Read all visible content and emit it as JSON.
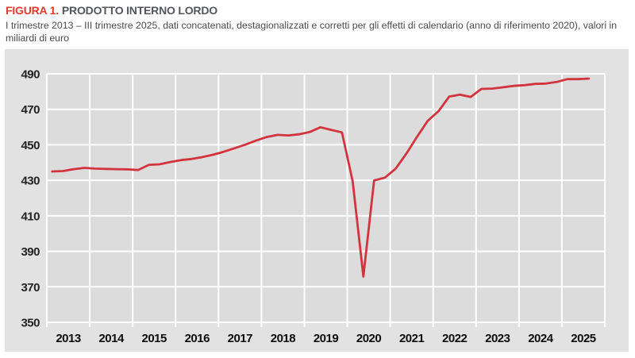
{
  "figure": {
    "label": "FIGURA 1.",
    "title": "PRODOTTO INTERNO LORDO",
    "subtitle": "I trimestre 2013 – III trimestre 2025, dati concatenati, destagionalizzati e corretti per gli effetti di calendario (anno di riferimento 2020), valori in miliardi di euro"
  },
  "chart_data": {
    "type": "line",
    "title": "Prodotto interno lordo",
    "x_description": "Quarters from Q1 2013 to Q3 2025",
    "x_tick_labels": [
      "2013",
      "2014",
      "2015",
      "2016",
      "2017",
      "2018",
      "2019",
      "2020",
      "2021",
      "2022",
      "2023",
      "2024",
      "2025"
    ],
    "ylim": [
      350,
      490
    ],
    "y_ticks": [
      490,
      470,
      450,
      430,
      410,
      390,
      370,
      350
    ],
    "grid": true,
    "legend": "none",
    "series": [
      {
        "name": "PIL (miliardi di euro)",
        "quarters": [
          "2013Q1",
          "2013Q2",
          "2013Q3",
          "2013Q4",
          "2014Q1",
          "2014Q2",
          "2014Q3",
          "2014Q4",
          "2015Q1",
          "2015Q2",
          "2015Q3",
          "2015Q4",
          "2016Q1",
          "2016Q2",
          "2016Q3",
          "2016Q4",
          "2017Q1",
          "2017Q2",
          "2017Q3",
          "2017Q4",
          "2018Q1",
          "2018Q2",
          "2018Q3",
          "2018Q4",
          "2019Q1",
          "2019Q2",
          "2019Q3",
          "2019Q4",
          "2020Q1",
          "2020Q2",
          "2020Q3",
          "2020Q4",
          "2021Q1",
          "2021Q2",
          "2021Q3",
          "2021Q4",
          "2022Q1",
          "2022Q2",
          "2022Q3",
          "2022Q4",
          "2023Q1",
          "2023Q2",
          "2023Q3",
          "2023Q4",
          "2024Q1",
          "2024Q2",
          "2024Q3",
          "2024Q4",
          "2025Q1",
          "2025Q2",
          "2025Q3"
        ],
        "values": [
          435.0,
          435.2,
          436.3,
          437.0,
          436.6,
          436.4,
          436.3,
          436.2,
          435.8,
          438.7,
          439.0,
          440.3,
          441.4,
          442.0,
          443.1,
          444.4,
          446.1,
          448.1,
          450.1,
          452.4,
          454.4,
          455.6,
          455.3,
          455.9,
          457.2,
          459.9,
          458.4,
          457.0,
          429.5,
          375.8,
          429.9,
          431.5,
          436.5,
          445.0,
          454.5,
          463.5,
          469.0,
          477.2,
          478.3,
          477.0,
          481.5,
          481.7,
          482.4,
          483.2,
          483.6,
          484.3,
          484.5,
          485.4,
          487.0,
          487.0,
          487.3
        ]
      }
    ],
    "colors": {
      "line": "#d2343e",
      "plot_background": "#dcdcdc",
      "panel_background": "#e2e2e2",
      "grid": "#ffffff",
      "title_accent": "#e6382c",
      "title_text": "#54565a"
    }
  }
}
